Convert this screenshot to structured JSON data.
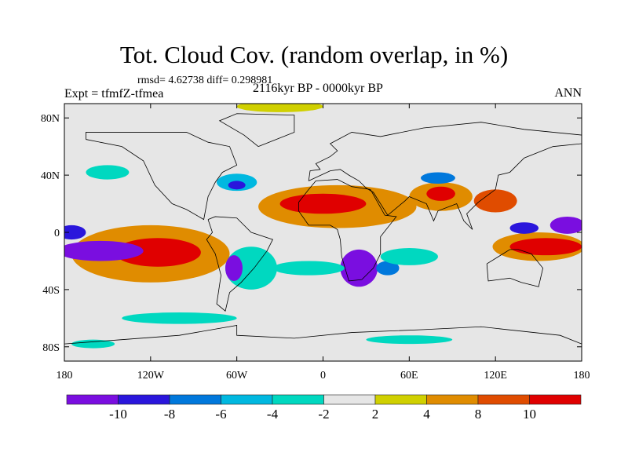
{
  "title": "Tot. Cloud Cov. (random overlap, in %)",
  "stats": "rmsd= 4.62738 diff= 0.298981",
  "expt": "Expt = tfmfZ-tfmea",
  "period": "2116kyr BP - 0000kyr BP",
  "season": "ANN",
  "chart_data": {
    "type": "heatmap",
    "title": "Tot. Cloud Cov. (random overlap, in %)",
    "lat_ticks": [
      {
        "v": 80,
        "label": "80N"
      },
      {
        "v": 40,
        "label": "40N"
      },
      {
        "v": 0,
        "label": "0"
      },
      {
        "v": -40,
        "label": "40S"
      },
      {
        "v": -80,
        "label": "80S"
      }
    ],
    "lon_ticks": [
      {
        "v": -180,
        "label": "180"
      },
      {
        "v": -120,
        "label": "120W"
      },
      {
        "v": -60,
        "label": "60W"
      },
      {
        "v": 0,
        "label": "0"
      },
      {
        "v": 60,
        "label": "60E"
      },
      {
        "v": 120,
        "label": "120E"
      },
      {
        "v": 180,
        "label": "180"
      }
    ],
    "xlim": [
      -180,
      180
    ],
    "ylim": [
      -90,
      90
    ],
    "levels": [
      "-10",
      "-8",
      "-6",
      "-4",
      "-2",
      "2",
      "4",
      "8",
      "10"
    ],
    "colors": [
      "#7a0ee0",
      "#2a16dc",
      "#0078dc",
      "#00b8e0",
      "#00d8c0",
      "#e6e6e6",
      "#d0d000",
      "#e08c00",
      "#e04c00",
      "#e00000"
    ],
    "regions": [
      {
        "lon": -120,
        "lat": -15,
        "rlon": 55,
        "rlat": 20,
        "bin": 7
      },
      {
        "lon": -115,
        "lat": -14,
        "rlon": 30,
        "rlat": 10,
        "bin": 9
      },
      {
        "lon": -155,
        "lat": -13,
        "rlon": 30,
        "rlat": 7,
        "bin": 0
      },
      {
        "lon": -175,
        "lat": 0,
        "rlon": 10,
        "rlat": 5,
        "bin": 1
      },
      {
        "lon": 10,
        "lat": 18,
        "rlon": 55,
        "rlat": 15,
        "bin": 7
      },
      {
        "lon": 0,
        "lat": 20,
        "rlon": 30,
        "rlat": 7,
        "bin": 9
      },
      {
        "lon": 82,
        "lat": 25,
        "rlon": 22,
        "rlat": 10,
        "bin": 7
      },
      {
        "lon": 82,
        "lat": 27,
        "rlon": 10,
        "rlat": 5,
        "bin": 9
      },
      {
        "lon": 120,
        "lat": 22,
        "rlon": 15,
        "rlat": 8,
        "bin": 8
      },
      {
        "lon": 150,
        "lat": -10,
        "rlon": 32,
        "rlat": 10,
        "bin": 7
      },
      {
        "lon": 155,
        "lat": -10,
        "rlon": 25,
        "rlat": 6,
        "bin": 9
      },
      {
        "lon": 170,
        "lat": 5,
        "rlon": 12,
        "rlat": 6,
        "bin": 0
      },
      {
        "lon": 140,
        "lat": 3,
        "rlon": 10,
        "rlat": 4,
        "bin": 1
      },
      {
        "lon": 25,
        "lat": -25,
        "rlon": 13,
        "rlat": 13,
        "bin": 0
      },
      {
        "lon": 45,
        "lat": -25,
        "rlon": 8,
        "rlat": 5,
        "bin": 2
      },
      {
        "lon": -50,
        "lat": -25,
        "rlon": 18,
        "rlat": 15,
        "bin": 4
      },
      {
        "lon": -62,
        "lat": -25,
        "rlon": 6,
        "rlat": 9,
        "bin": 0
      },
      {
        "lon": -10,
        "lat": -25,
        "rlon": 25,
        "rlat": 5,
        "bin": 4
      },
      {
        "lon": 60,
        "lat": -17,
        "rlon": 20,
        "rlat": 6,
        "bin": 4
      },
      {
        "lon": -60,
        "lat": 35,
        "rlon": 14,
        "rlat": 6,
        "bin": 3
      },
      {
        "lon": -60,
        "lat": 33,
        "rlon": 6,
        "rlat": 3,
        "bin": 1
      },
      {
        "lon": -150,
        "lat": 42,
        "rlon": 15,
        "rlat": 5,
        "bin": 4
      },
      {
        "lon": 80,
        "lat": 38,
        "rlon": 12,
        "rlat": 4,
        "bin": 2
      },
      {
        "lon": -100,
        "lat": -60,
        "rlon": 40,
        "rlat": 4,
        "bin": 4
      },
      {
        "lon": -160,
        "lat": -78,
        "rlon": 15,
        "rlat": 3,
        "bin": 4
      },
      {
        "lon": 60,
        "lat": -75,
        "rlon": 30,
        "rlat": 3,
        "bin": 4
      },
      {
        "lon": -30,
        "lat": 88,
        "rlon": 30,
        "rlat": 4,
        "bin": 6
      }
    ]
  }
}
